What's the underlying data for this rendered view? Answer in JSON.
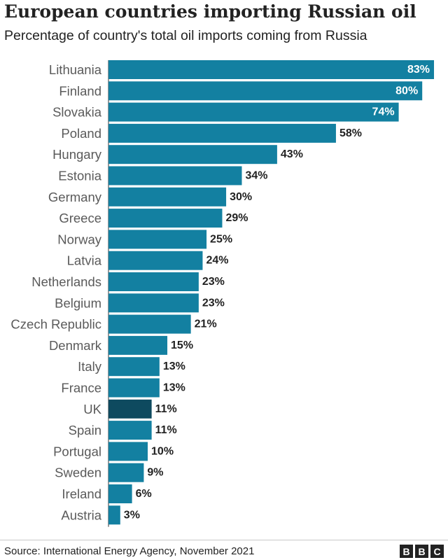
{
  "title": "European countries importing Russian oil",
  "subtitle": "Percentage of country's total oil imports coming from Russia",
  "source": "Source:  International Energy Agency, November 2021",
  "logo": [
    "B",
    "B",
    "C"
  ],
  "colors": {
    "bar": "#1380a1",
    "highlight": "#0e4a5f",
    "divider": "#ffffff",
    "value_text": "#222222",
    "value_text_inside": "#ffffff"
  },
  "chart_data": {
    "type": "bar",
    "orientation": "horizontal",
    "value_suffix": "%",
    "highlight": "UK",
    "categories": [
      "Lithuania",
      "Finland",
      "Slovakia",
      "Poland",
      "Hungary",
      "Estonia",
      "Germany",
      "Greece",
      "Norway",
      "Latvia",
      "Netherlands",
      "Belgium",
      "Czech Republic",
      "Denmark",
      "Italy",
      "France",
      "UK",
      "Spain",
      "Portugal",
      "Sweden",
      "Ireland",
      "Austria"
    ],
    "values": [
      83,
      80,
      74,
      58,
      43,
      34,
      30,
      29,
      25,
      24,
      23,
      23,
      21,
      15,
      13,
      13,
      11,
      11,
      10,
      9,
      6,
      3
    ],
    "xlim": [
      0,
      83
    ]
  }
}
